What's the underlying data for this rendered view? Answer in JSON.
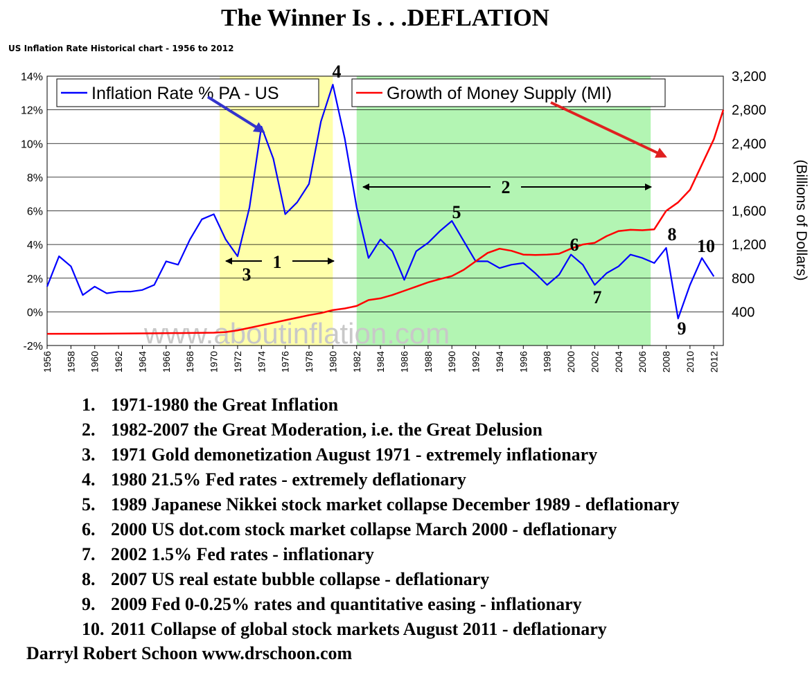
{
  "header": {
    "title": "The Winner Is . . .DEFLATION",
    "subtitle": "US Inflation Rate Historical chart - 1956 to 2012"
  },
  "chart_data": {
    "type": "line",
    "x_min": 1956,
    "x_max": 2012.8,
    "x_ticks": [
      "1956",
      "1958",
      "1960",
      "1962",
      "1964",
      "1966",
      "1968",
      "1970",
      "1972",
      "1974",
      "1976",
      "1978",
      "1980",
      "1982",
      "1984",
      "1986",
      "1988",
      "1990",
      "1992",
      "1994",
      "1996",
      "1998",
      "2000",
      "2002",
      "2004",
      "2006",
      "2008",
      "2010",
      "2012"
    ],
    "y_left": {
      "label": "",
      "min": -2,
      "max": 14,
      "ticks": [
        "-2%",
        "0%",
        "2%",
        "4%",
        "6%",
        "8%",
        "10%",
        "12%",
        "14%"
      ]
    },
    "y_right": {
      "label": "(Billions of Dollars)",
      "min": 0,
      "max": 3200,
      "ticks": [
        "400",
        "800",
        "1,200",
        "1,600",
        "2,000",
        "2,400",
        "2,800",
        "3,200"
      ]
    },
    "watermark": "www.aboutinflation.com",
    "colors": {
      "inflation": "#0000ff",
      "money": "#ff0000",
      "shade1": "#ffffaa",
      "shade2": "#b3f5b3",
      "arrow_blue": "#3333cc",
      "arrow_red": "#e02020"
    },
    "shaded_periods": [
      {
        "name": "Great Inflation",
        "from": 1970.5,
        "to": 1980.0,
        "color": "#ffffaa"
      },
      {
        "name": "Great Moderation",
        "from": 1982.0,
        "to": 2006.7,
        "color": "#b3f5b3"
      }
    ],
    "series": [
      {
        "name": "Inflation Rate % PA - US",
        "axis": "left",
        "color": "#0000ff",
        "x": [
          1956,
          1957,
          1958,
          1959,
          1960,
          1961,
          1962,
          1963,
          1964,
          1965,
          1966,
          1967,
          1968,
          1969,
          1970,
          1971,
          1972,
          1973,
          1974,
          1975,
          1976,
          1977,
          1978,
          1979,
          1980,
          1981,
          1982,
          1983,
          1984,
          1985,
          1986,
          1987,
          1988,
          1989,
          1990,
          1991,
          1992,
          1993,
          1994,
          1995,
          1996,
          1997,
          1998,
          1999,
          2000,
          2001,
          2002,
          2003,
          2004,
          2005,
          2006,
          2007,
          2008,
          2009,
          2010,
          2011,
          2012
        ],
        "values": [
          1.5,
          3.3,
          2.7,
          1.0,
          1.5,
          1.1,
          1.2,
          1.2,
          1.3,
          1.6,
          3.0,
          2.8,
          4.3,
          5.5,
          5.8,
          4.3,
          3.3,
          6.2,
          11.0,
          9.1,
          5.8,
          6.5,
          7.6,
          11.3,
          13.5,
          10.3,
          6.2,
          3.2,
          4.3,
          3.6,
          1.9,
          3.6,
          4.1,
          4.8,
          5.4,
          4.2,
          3.0,
          3.0,
          2.6,
          2.8,
          2.9,
          2.3,
          1.6,
          2.2,
          3.4,
          2.8,
          1.6,
          2.3,
          2.7,
          3.4,
          3.2,
          2.9,
          3.8,
          -0.4,
          1.6,
          3.2,
          2.1
        ]
      },
      {
        "name": "Growth of Money Supply (MI)",
        "axis": "right",
        "color": "#ff0000",
        "x": [
          1956,
          1960,
          1965,
          1970,
          1971,
          1972,
          1973,
          1974,
          1975,
          1976,
          1977,
          1978,
          1979,
          1980,
          1981,
          1982,
          1983,
          1984,
          1985,
          1986,
          1987,
          1988,
          1989,
          1990,
          1991,
          1992,
          1993,
          1994,
          1995,
          1996,
          1997,
          1998,
          1999,
          2000,
          2001,
          2002,
          2003,
          2004,
          2005,
          2006,
          2007,
          2008,
          2009,
          2010,
          2011,
          2012,
          2012.8
        ],
        "values": [
          139,
          140,
          145,
          152,
          160,
          180,
          210,
          240,
          270,
          300,
          330,
          360,
          385,
          420,
          440,
          470,
          540,
          560,
          600,
          650,
          700,
          750,
          790,
          825,
          900,
          1000,
          1100,
          1150,
          1125,
          1080,
          1075,
          1080,
          1090,
          1150,
          1200,
          1220,
          1300,
          1360,
          1375,
          1370,
          1380,
          1600,
          1700,
          1850,
          2150,
          2450,
          2800
        ]
      }
    ],
    "legend": [
      {
        "label": "Inflation Rate % PA - US",
        "color": "#0000ff",
        "position": "top-left"
      },
      {
        "label": "Growth of Money Supply (MI)",
        "color": "#ff0000",
        "position": "top-center"
      }
    ],
    "annotations": [
      {
        "label": "1",
        "text": "Great Inflation span 1971-1980"
      },
      {
        "label": "2",
        "text": "Great Moderation span 1982-2007"
      },
      {
        "label": "3",
        "year": 1972,
        "value": 3.3
      },
      {
        "label": "4",
        "year": 1980,
        "value": 13.5
      },
      {
        "label": "5",
        "year": 1990,
        "value": 5.4
      },
      {
        "label": "6",
        "year": 2000,
        "value": 3.4
      },
      {
        "label": "7",
        "year": 2002,
        "value": 1.6
      },
      {
        "label": "8",
        "year": 2008,
        "value": 3.8
      },
      {
        "label": "9",
        "year": 2009,
        "value": -0.4
      },
      {
        "label": "10",
        "year": 2011,
        "value": 3.2
      }
    ]
  },
  "notes": [
    {
      "num": "1.",
      "text": "1971-1980 the Great Inflation"
    },
    {
      "num": "2.",
      "text": "1982-2007 the Great Moderation, i.e. the Great Delusion"
    },
    {
      "num": "3.",
      "text": "1971 Gold demonetization August 1971 - extremely inflationary"
    },
    {
      "num": "4.",
      "text": "1980 21.5% Fed rates - extremely deflationary"
    },
    {
      "num": "5.",
      "text": "1989 Japanese Nikkei stock market collapse December 1989 - deflationary"
    },
    {
      "num": "6.",
      "text": "2000 US dot.com stock market collapse March 2000 - deflationary"
    },
    {
      "num": "7.",
      "text": "2002 1.5% Fed rates - inflationary"
    },
    {
      "num": "8.",
      "text": "2007 US real estate bubble collapse - deflationary"
    },
    {
      "num": "9.",
      "text": "2009 Fed 0-0.25% rates and quantitative easing - inflationary"
    },
    {
      "num": "10.",
      "text": "2011 Collapse of global stock markets August 2011 - deflationary"
    }
  ],
  "footer": {
    "credit": "Darryl Robert Schoon www.drschoon.com"
  }
}
